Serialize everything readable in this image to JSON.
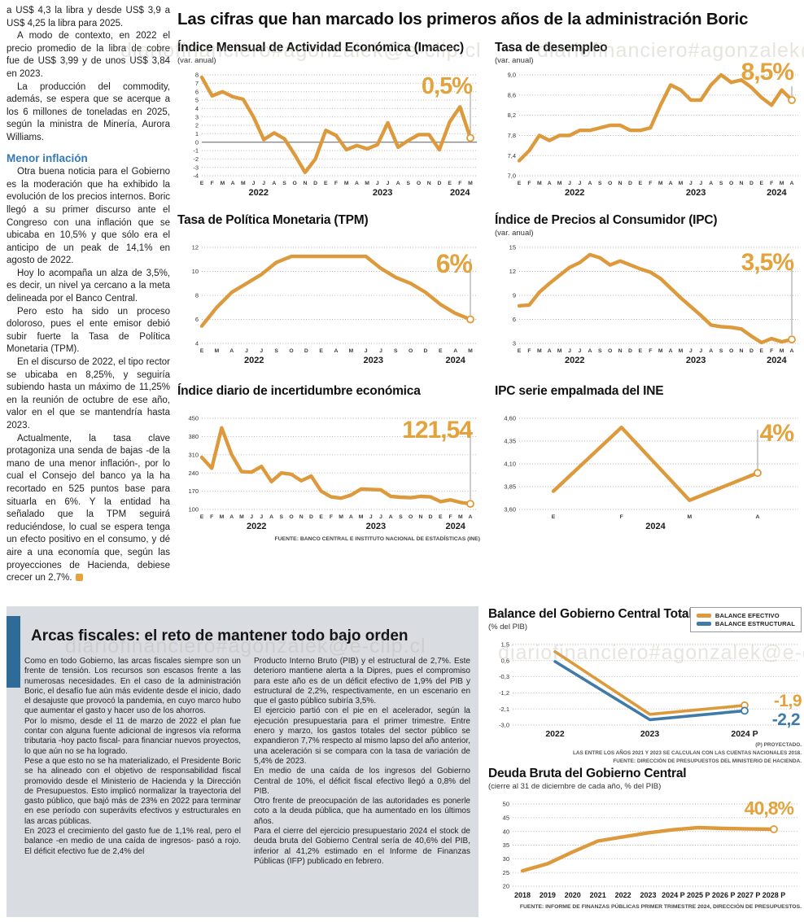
{
  "watermark": "diariofinanciero#agonzalek@e-clip.cl",
  "page_title": "Las cifras que han marcado los primeros años de la administración Boric",
  "left_article": {
    "paragraphs": [
      "a US$ 4,3 la libra y desde US$ 3,9 a US$ 4,25 la libra para 2025.",
      "A modo de contexto, en 2022 el precio promedio de la libra de cobre fue de US$ 3,99 y de unos US$ 3,84 en 2023.",
      "La producción del commodity, además, se espera que se acerque a los 6 millones de toneladas en 2025, según la ministra de Minería, Aurora Williams."
    ],
    "subhead": "Menor inflación",
    "paragraphs_after": [
      "Otra buena noticia para el Gobierno es la moderación que ha exhibido la evolución de los precios internos. Boric llegó a su primer discurso ante el Congreso con una inflación que se ubicaba en 10,5% y que sólo era el anticipo de un peak de 14,1% en agosto de 2022.",
      "Hoy lo acompaña un alza de 3,5%, es decir, un nivel ya cercano a la meta delineada por el Banco Central.",
      "Pero esto ha sido un proceso doloroso, pues el ente emisor debió subir fuerte la Tasa de Política Monetaria (TPM).",
      "En el discurso de 2022, el tipo rector se ubicaba en 8,25%, y seguiría subiendo hasta un máximo de 11,25% en la reunión de octubre de ese año, valor en el que se mantendría hasta 2023.",
      "Actualmente, la tasa clave protagoniza una senda de bajas -de la mano de una menor inflación-, por lo cual el Consejo del banco ya la ha recortado en 525 puntos base para situarla en 6%. Y la entidad ha señalado que la TPM seguirá reduciéndose, lo cual se espera tenga un efecto positivo en el consumo, y dé aire a una economía que, según las proyecciones de Hacienda, debiese crecer un 2,7%."
    ]
  },
  "fiscal_box": {
    "title": "Arcas fiscales: el reto de mantener todo bajo orden",
    "col1": [
      "Como en todo Gobierno, las arcas fiscales siempre son un frente de tensión. Los recursos son escasos frente a las numerosas necesidades. En el caso de la administración Boric, el desafío fue aún más evidente desde el inicio, dado el desajuste que provocó la pandemia, en cuyo marco hubo que aumentar el gasto y hacer uso de los ahorros.",
      "Por lo mismo, desde el 11 de marzo de 2022 el plan fue contar con alguna fuente adicional de ingresos vía reforma tributaria -hoy pacto fiscal- para financiar nuevos proyectos, lo que aún no se ha logrado.",
      "Pese a que esto no se ha materializado, el Presidente Boric se ha alineado con el objetivo de responsabilidad fiscal promovido desde el Ministerio de Hacienda y la Dirección de Presupuestos. Esto implicó normalizar la trayectoria del gasto público, que bajó más de 23% en 2022 para terminar en ese período con superávits efectivos y estructurales en las arcas públicas.",
      "En 2023 el crecimiento del gasto fue de 1,1% real, pero el balance -en medio de una caída de ingresos- pasó a rojo. El déficit efectivo fue de 2,4% del"
    ],
    "col2": [
      "Producto Interno Bruto (PIB) y el estructural de 2,7%. Este deterioro mantiene alerta a la Dipres, pues el compromiso para este año es de un déficit efectivo de 1,9% del PIB y estructural de 2,2%, respectivamente, en un escenario en que el gasto público subiría 3,5%.",
      "El ejercicio partió con el pie en el acelerador, según la ejecución presupuestaria para el primer trimestre. Entre enero y marzo, los gastos totales del sector público se expandieron 7,7% respecto al mismo lapso del año anterior, una aceleración si se compara con la tasa de variación de 5,4% de 2023.",
      "En medio de una caída de los ingresos del Gobierno Central de 10%, el déficit fiscal efectivo llegó a 0,8% del PIB.",
      "Otro frente de preocupación de las autoridades es ponerle coto a la deuda pública, que ha aumentado en los últimos años.",
      "Para el cierre del ejercicio presupuestario 2024 el stock de deuda bruta del Gobierno Central sería de 40,6% del PIB, inferior al 41,2% estimado en el Informe de Finanzas Públicas (IFP) publicado en febrero."
    ]
  },
  "chart_data": [
    {
      "type": "line",
      "title": "Índice Mensual de Actividad Económica (Imacec)",
      "subtitle": "(var. anual)",
      "headline": "0,5%",
      "ylim": [
        -4,
        8
      ],
      "yticks": [
        8,
        7,
        6,
        5,
        4,
        3,
        2,
        1,
        0,
        -1,
        -2,
        -3,
        -4
      ],
      "ytick_labels": [
        "8",
        "7",
        "6",
        "5",
        "4",
        "3",
        "2",
        "1",
        "0",
        "-1",
        "-2",
        "-3",
        "-4"
      ],
      "zero_line": true,
      "x_style": "letters",
      "x_labels": [
        "E",
        "F",
        "M",
        "A",
        "M",
        "J",
        "J",
        "A",
        "S",
        "O",
        "N",
        "D",
        "E",
        "F",
        "M",
        "A",
        "M",
        "J",
        "J",
        "A",
        "S",
        "O",
        "N",
        "D",
        "E",
        "F",
        "M"
      ],
      "years": [
        {
          "label": "2022",
          "from": 0,
          "to": 11
        },
        {
          "label": "2023",
          "from": 12,
          "to": 23
        },
        {
          "label": "2024",
          "from": 24,
          "to": 26
        }
      ],
      "series": [
        {
          "name": "Imacec",
          "color": "#dd9a3c",
          "values": [
            7.7,
            5.5,
            6.0,
            5.4,
            5.1,
            3.0,
            0.3,
            1.1,
            0.4,
            -1.5,
            -3.6,
            -2.0,
            1.4,
            0.8,
            -0.9,
            -0.4,
            -0.8,
            -0.3,
            2.3,
            -0.6,
            0.2,
            0.9,
            0.9,
            -0.9,
            2.4,
            4.2,
            0.5
          ]
        }
      ],
      "endpoints": [
        0
      ],
      "marker": true
    },
    {
      "type": "line",
      "title": "Tasa de desempleo",
      "subtitle": "(var. anual)",
      "headline": "8,5%",
      "ylim": [
        7.0,
        9.0
      ],
      "yticks": [
        9.0,
        8.6,
        8.2,
        7.8,
        7.4,
        7.0
      ],
      "ytick_labels": [
        "9,0",
        "8,6",
        "8,2",
        "7,8",
        "7,4",
        "7,0"
      ],
      "x_style": "letters",
      "x_labels": [
        "E",
        "F",
        "M",
        "A",
        "M",
        "J",
        "J",
        "A",
        "S",
        "O",
        "N",
        "D",
        "E",
        "F",
        "M",
        "A",
        "M",
        "J",
        "J",
        "A",
        "S",
        "O",
        "N",
        "D",
        "E",
        "F",
        "M",
        "A"
      ],
      "years": [
        {
          "label": "2022",
          "from": 0,
          "to": 11
        },
        {
          "label": "2023",
          "from": 12,
          "to": 23
        },
        {
          "label": "2024",
          "from": 24,
          "to": 27
        }
      ],
      "series": [
        {
          "name": "Tasa de desempleo",
          "color": "#dd9a3c",
          "values": [
            7.3,
            7.5,
            7.8,
            7.7,
            7.8,
            7.8,
            7.9,
            7.9,
            7.95,
            8.0,
            8.0,
            7.9,
            7.9,
            7.95,
            8.4,
            8.8,
            8.7,
            8.5,
            8.5,
            8.8,
            9.0,
            8.85,
            8.9,
            8.75,
            8.55,
            8.4,
            8.7,
            8.5
          ]
        }
      ],
      "endpoints": [
        0
      ],
      "marker": true
    },
    {
      "type": "line",
      "title": "Tasa de Política Monetaria (TPM)",
      "subtitle": "",
      "headline": "6%",
      "ylim": [
        4,
        12
      ],
      "yticks": [
        12,
        10,
        8,
        6,
        4
      ],
      "ytick_labels": [
        "12",
        "10",
        "8",
        "6",
        "4"
      ],
      "x_style": "letters",
      "x_labels": [
        "E",
        "M",
        "A",
        "J",
        "J",
        "S",
        "O",
        "D",
        "E",
        "A",
        "M",
        "J",
        "J",
        "S",
        "O",
        "D",
        "E",
        "A",
        "M"
      ],
      "years": [
        {
          "label": "2022",
          "from": 0,
          "to": 7
        },
        {
          "label": "2023",
          "from": 8,
          "to": 15
        },
        {
          "label": "2024",
          "from": 16,
          "to": 18
        }
      ],
      "series": [
        {
          "name": "TPM",
          "color": "#dd9a3c",
          "values": [
            5.45,
            7.0,
            8.25,
            9.0,
            9.75,
            10.75,
            11.25,
            11.25,
            11.25,
            11.25,
            11.25,
            11.25,
            10.25,
            9.5,
            9.0,
            8.25,
            7.25,
            6.5,
            6.0
          ]
        }
      ],
      "endpoints": [
        0
      ],
      "marker": true
    },
    {
      "type": "line",
      "title": "Índice de Precios al Consumidor (IPC)",
      "subtitle": "(var. anual)",
      "headline": "3,5%",
      "ylim": [
        3,
        15
      ],
      "yticks": [
        15,
        12,
        9,
        6,
        3
      ],
      "ytick_labels": [
        "15",
        "12",
        "9",
        "6",
        "3"
      ],
      "x_style": "letters",
      "x_labels": [
        "E",
        "F",
        "M",
        "A",
        "M",
        "J",
        "J",
        "A",
        "S",
        "O",
        "N",
        "D",
        "E",
        "F",
        "M",
        "A",
        "M",
        "J",
        "J",
        "A",
        "S",
        "O",
        "N",
        "D",
        "E",
        "F",
        "M",
        "A"
      ],
      "years": [
        {
          "label": "2022",
          "from": 0,
          "to": 11
        },
        {
          "label": "2023",
          "from": 12,
          "to": 23
        },
        {
          "label": "2024",
          "from": 24,
          "to": 27
        }
      ],
      "series": [
        {
          "name": "IPC",
          "color": "#dd9a3c",
          "values": [
            7.7,
            7.8,
            9.4,
            10.5,
            11.5,
            12.5,
            13.1,
            14.1,
            13.7,
            12.8,
            13.3,
            12.8,
            12.3,
            11.9,
            11.1,
            9.9,
            8.7,
            7.6,
            6.5,
            5.3,
            5.1,
            5.0,
            4.8,
            3.9,
            3.1,
            3.6,
            3.2,
            3.5
          ]
        }
      ],
      "endpoints": [
        0
      ],
      "marker": true
    },
    {
      "type": "line",
      "title": "Índice diario de incertidumbre económica",
      "subtitle": "",
      "headline": "121,54",
      "ylim": [
        100,
        450
      ],
      "yticks": [
        450,
        380,
        310,
        240,
        170,
        100
      ],
      "ytick_labels": [
        "450",
        "380",
        "310",
        "240",
        "170",
        "100"
      ],
      "x_style": "letters",
      "x_labels": [
        "E",
        "F",
        "M",
        "A",
        "M",
        "J",
        "J",
        "A",
        "S",
        "O",
        "N",
        "D",
        "E",
        "F",
        "M",
        "A",
        "M",
        "J",
        "J",
        "A",
        "S",
        "O",
        "N",
        "D",
        "E",
        "F",
        "M",
        "A"
      ],
      "years": [
        {
          "label": "2022",
          "from": 0,
          "to": 11
        },
        {
          "label": "2023",
          "from": 12,
          "to": 23
        },
        {
          "label": "2024",
          "from": 24,
          "to": 27
        }
      ],
      "series": [
        {
          "name": "Incertidumbre económica",
          "color": "#dd9a3c",
          "values": [
            300,
            258,
            413,
            310,
            245,
            243,
            265,
            207,
            240,
            235,
            210,
            228,
            170,
            148,
            143,
            155,
            178,
            177,
            175,
            150,
            147,
            145,
            150,
            148,
            130,
            137,
            127,
            121.54
          ]
        }
      ],
      "endpoints": [
        0
      ],
      "marker": true,
      "source": "FUENTE: BANCO CENTRAL E INSTITUTO NACIONAL DE ESTADÍSTICAS (INE)"
    },
    {
      "type": "line",
      "title": "IPC serie empalmada del INE",
      "subtitle": "",
      "headline": "4%",
      "ylim": [
        3.6,
        4.6
      ],
      "yticks": [
        4.6,
        4.35,
        4.1,
        3.85,
        3.6
      ],
      "ytick_labels": [
        "4,60",
        "4,35",
        "4,10",
        "3,85",
        "3,60"
      ],
      "x_style": "letters",
      "x_labels": [
        "E",
        "F",
        "M",
        "A"
      ],
      "xpad": [
        42,
        42
      ],
      "years": [
        {
          "label": "2024",
          "from": 0,
          "to": 3
        }
      ],
      "series": [
        {
          "name": "IPC serie empalmada",
          "color": "#dd9a3c",
          "values": [
            3.8,
            4.5,
            3.7,
            4.0
          ]
        }
      ],
      "endpoints": [
        0
      ],
      "marker": true
    },
    {
      "type": "line",
      "title": "Balance del Gobierno Central Total",
      "subtitle": "(% del PIB)",
      "ylim": [
        -3.0,
        1.5
      ],
      "yticks": [
        1.5,
        0.6,
        -0.3,
        -1.2,
        -2.1,
        -3.0
      ],
      "ytick_labels": [
        "1,5",
        "0,6",
        "-0,3",
        "-1,2",
        "-2,1",
        "-3,0"
      ],
      "x_style": "years",
      "x_labels": [
        "2022",
        "2023",
        "2024 P"
      ],
      "xpad": [
        52,
        58
      ],
      "series": [
        {
          "name": "BALANCE EFECTIVO",
          "color": "#dd9a3c",
          "values": [
            1.1,
            -2.4,
            -1.9
          ]
        },
        {
          "name": "BALANCE ESTRUCTURAL",
          "color": "#3f7aa8",
          "values": [
            0.55,
            -2.7,
            -2.2
          ]
        }
      ],
      "endpoints": [
        0,
        1
      ],
      "marker": false,
      "end_labels": [
        "-1,9",
        "-2,2"
      ],
      "footnotes": [
        "(P) PROYECTADO.",
        "LAS ENTRE LOS AÑOS 2021 Y 2023 SE CALCULAN  CON LAS CUENTAS NACIONALES 2018.",
        "FUENTE: DIRECCIÓN DE PRESUPUESTOS DEL MINISTERIO DE HACIENDA."
      ]
    },
    {
      "type": "line",
      "title": "Deuda Bruta del Gobierno Central",
      "subtitle": "(cierre al 31 de diciembre de cada año, % del PIB)",
      "headline": "40,8%",
      "ylim": [
        20,
        50
      ],
      "yticks": [
        50,
        45,
        40,
        35,
        30,
        25,
        20
      ],
      "ytick_labels": [
        "50",
        "45",
        "40",
        "35",
        "30",
        "25",
        "20"
      ],
      "x_style": "years",
      "x_labels": [
        "2018",
        "2019",
        "2020",
        "2021",
        "2022",
        "2023",
        "2024 P",
        "2025 P",
        "2026 P",
        "2027 P",
        "2028 P"
      ],
      "xpad": [
        12,
        22
      ],
      "series": [
        {
          "name": "Deuda bruta",
          "color": "#dd9a3c",
          "values": [
            25.6,
            28.2,
            32.5,
            36.5,
            38.0,
            39.5,
            40.6,
            41.4,
            41.1,
            40.9,
            40.8
          ]
        }
      ],
      "endpoints": [
        0
      ],
      "marker": false,
      "source": "FUENTE: INFORME DE FINANZAS PÚBLICAS PRIMER TRIMESTRE 2024, DIRECCIÓN DE PRESUPUESTOS."
    }
  ]
}
